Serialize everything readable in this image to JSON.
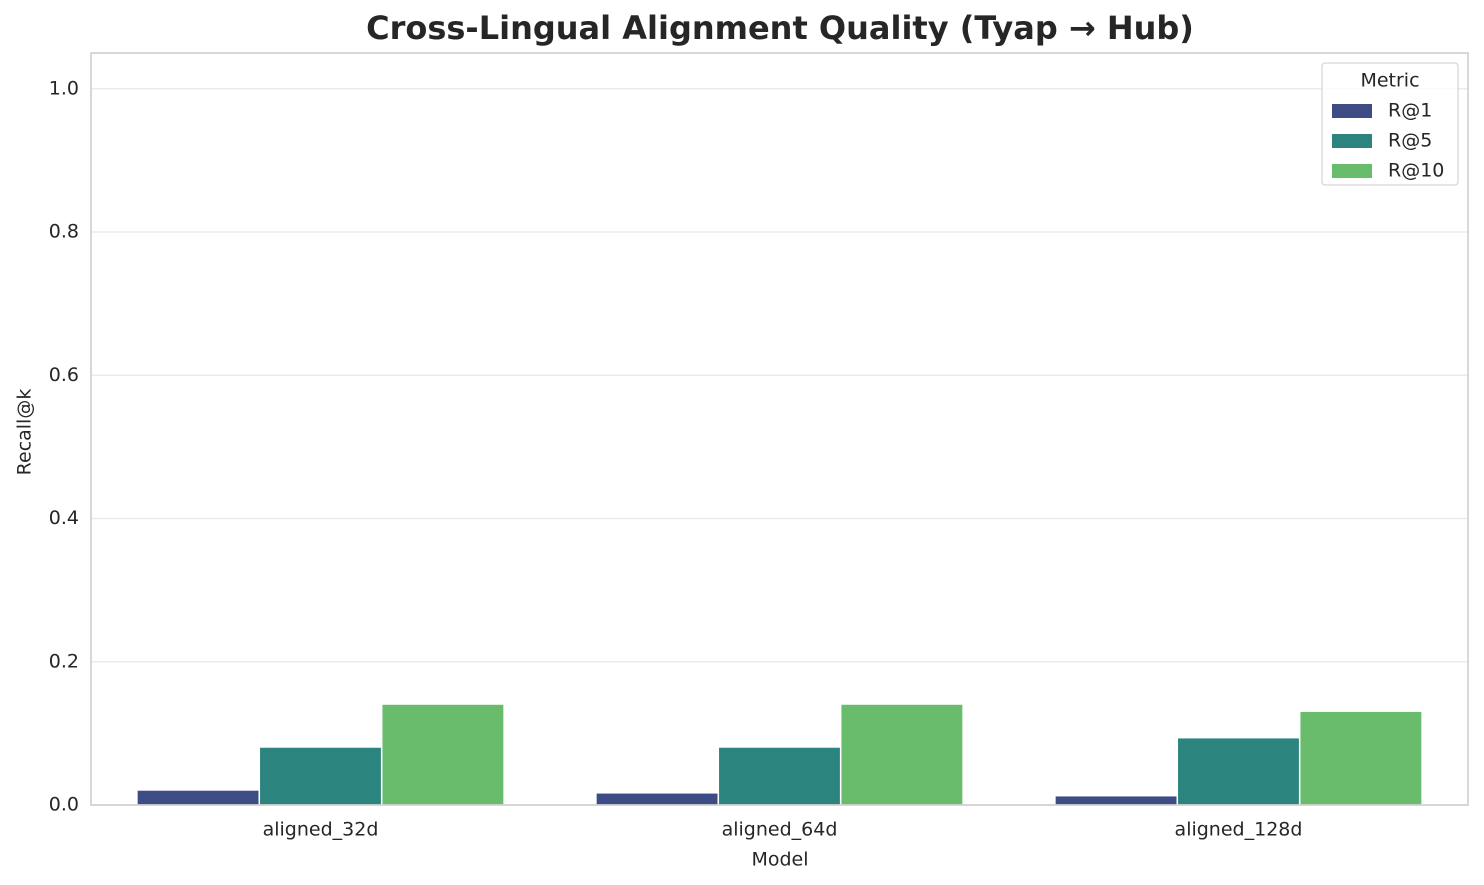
{
  "chart_data": {
    "type": "bar",
    "title": "Cross-Lingual Alignment Quality (Tyap → Hub)",
    "x_label": "Model",
    "y_label": "Recall@k",
    "categories": [
      "aligned_32d",
      "aligned_64d",
      "aligned_128d"
    ],
    "legend_title": "Metric",
    "legend": "upper right",
    "series": [
      {
        "name": "R@1",
        "color": "#3e4c86",
        "values": [
          0.021,
          0.017,
          0.013
        ]
      },
      {
        "name": "R@5",
        "color": "#2c847e",
        "values": [
          0.081,
          0.081,
          0.094
        ]
      },
      {
        "name": "R@10",
        "color": "#69bc6b",
        "values": [
          0.141,
          0.141,
          0.131
        ]
      }
    ],
    "ylim": [
      0,
      1.05
    ],
    "yticks": [
      {
        "value": 0,
        "label": "0.0"
      },
      0.2,
      0.4,
      0.6,
      0.8,
      {
        "value": 1,
        "label": "1.0"
      }
    ],
    "grid": true
  }
}
